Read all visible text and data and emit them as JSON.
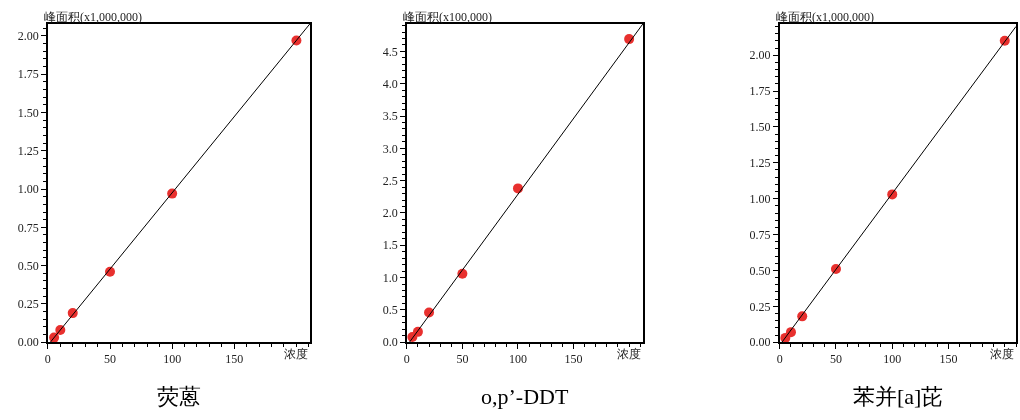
{
  "chart_data": [
    {
      "type": "scatter",
      "title": "荧蒽",
      "ylabel": "峰面积(x1,000,000)",
      "xlabel": "浓度",
      "xlim": [
        0,
        211
      ],
      "ylim": [
        0,
        2.08
      ],
      "xticks": [
        0,
        50,
        100,
        150
      ],
      "yticks": [
        {
          "value": 0,
          "label": "0.00"
        },
        {
          "value": 0.25,
          "label": "0.25"
        },
        {
          "value": 0.5,
          "label": "0.50"
        },
        {
          "value": 0.75,
          "label": "0.75"
        },
        {
          "value": 1,
          "label": "1.00"
        },
        {
          "value": 1.25,
          "label": "1.25"
        },
        {
          "value": 1.5,
          "label": "1.50"
        },
        {
          "value": 1.75,
          "label": "1.75"
        },
        {
          "value": 2,
          "label": "2.00"
        }
      ],
      "series": [
        {
          "marker": "circle",
          "color": "#e8302e",
          "x": [
            5,
            10,
            20,
            50,
            100,
            200
          ],
          "values": [
            0.03,
            0.08,
            0.19,
            0.46,
            0.97,
            1.97
          ]
        },
        {
          "type": "line",
          "marker": "none",
          "color": "#000000",
          "x": [
            2,
            211
          ],
          "values": [
            0.0,
            2.08
          ]
        }
      ]
    },
    {
      "type": "scatter",
      "title": "o,p’-DDT",
      "ylabel": "峰面积(x100,000)",
      "xlabel": "浓度",
      "xlim": [
        0,
        212.6
      ],
      "ylim": [
        0,
        4.93
      ],
      "xticks": [
        0,
        50,
        100,
        150
      ],
      "yticks": [
        {
          "value": 0,
          "label": "0.0"
        },
        0.5,
        {
          "value": 1,
          "label": "1.0"
        },
        1.5,
        {
          "value": 2,
          "label": "2.0"
        },
        2.5,
        {
          "value": 3,
          "label": "3.0"
        },
        3.5,
        {
          "value": 4,
          "label": "4.0"
        },
        4.5
      ],
      "series": [
        {
          "marker": "circle",
          "color": "#e8302e",
          "x": [
            5,
            10,
            20,
            50,
            100,
            200
          ],
          "values": [
            0.08,
            0.16,
            0.46,
            1.06,
            2.38,
            4.69
          ]
        },
        {
          "type": "line",
          "marker": "none",
          "color": "#000000",
          "x": [
            2.4,
            212.6
          ],
          "values": [
            0.0,
            4.93
          ]
        }
      ]
    },
    {
      "type": "scatter",
      "title": "苯并[a]芘",
      "ylabel": "峰面积(x1,000,000)",
      "xlabel": "浓度",
      "xlim": [
        0,
        210
      ],
      "ylim": [
        0,
        2.22
      ],
      "xticks": [
        0,
        50,
        100,
        150
      ],
      "yticks": [
        {
          "value": 0,
          "label": "0.00"
        },
        {
          "value": 0.25,
          "label": "0.25"
        },
        {
          "value": 0.5,
          "label": "0.50"
        },
        {
          "value": 0.75,
          "label": "0.75"
        },
        {
          "value": 1,
          "label": "1.00"
        },
        {
          "value": 1.25,
          "label": "1.25"
        },
        {
          "value": 1.5,
          "label": "1.50"
        },
        {
          "value": 1.75,
          "label": "1.75"
        },
        {
          "value": 2,
          "label": "2.00"
        }
      ],
      "series": [
        {
          "marker": "circle",
          "color": "#e8302e",
          "x": [
            5,
            10,
            20,
            50,
            100,
            200
          ],
          "values": [
            0.03,
            0.07,
            0.18,
            0.51,
            1.03,
            2.1
          ]
        },
        {
          "type": "line",
          "marker": "none",
          "color": "#000000",
          "x": [
            2,
            210
          ],
          "values": [
            0.0,
            2.2
          ]
        }
      ]
    }
  ]
}
